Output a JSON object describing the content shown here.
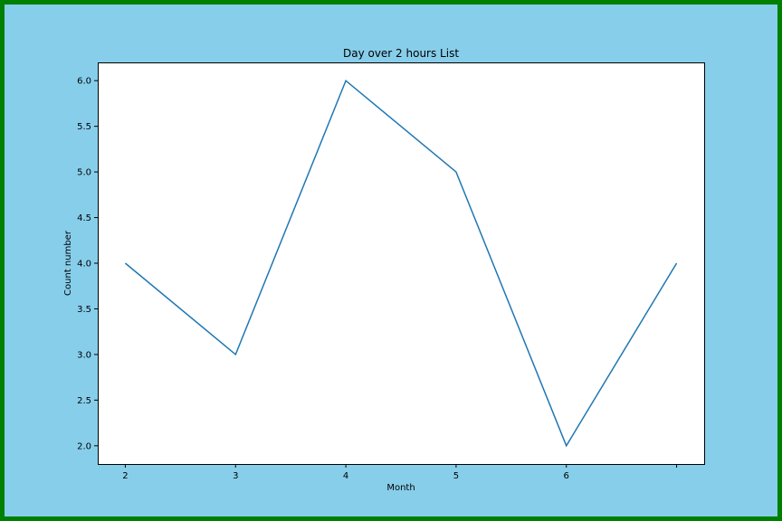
{
  "figure": {
    "background": "#87ceeb",
    "border_color": "#008000"
  },
  "chart_data": {
    "type": "line",
    "title": "Day over 2 hours List",
    "xlabel": "Month",
    "ylabel": "Count number",
    "x": [
      2,
      3,
      4,
      5,
      6,
      7
    ],
    "x_tick_values": [
      2,
      3,
      4,
      5,
      6,
      7
    ],
    "x_tick_labels": [
      "2",
      "3",
      "4",
      "5",
      "6",
      ""
    ],
    "y_ticks": [
      "2.0",
      "2.5",
      "3.0",
      "3.5",
      "4.0",
      "4.5",
      "5.0",
      "5.5",
      "6.0"
    ],
    "series": [
      {
        "values": [
          4,
          3,
          6,
          5,
          2,
          4
        ],
        "color": "#1f77b4"
      }
    ],
    "xlim": [
      1.75,
      7.25
    ],
    "ylim": [
      1.8,
      6.2
    ],
    "grid": false,
    "legend": "none",
    "plot_background": "#ffffff"
  }
}
